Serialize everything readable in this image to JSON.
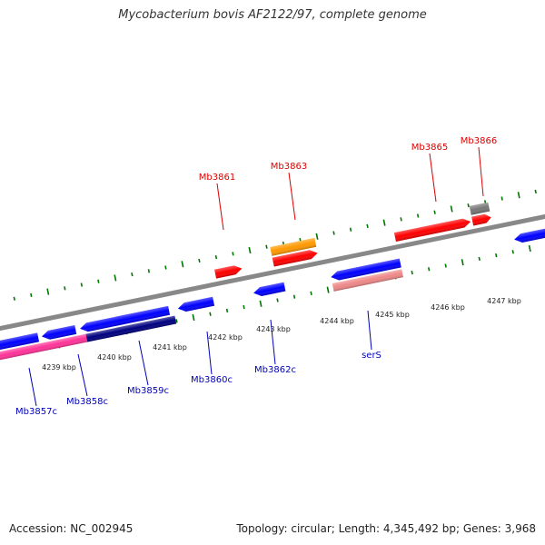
{
  "title": "Mycobacterium bovis AF2122/97, complete genome",
  "footer": {
    "accession": "Accession: NC_002945",
    "summary": "Topology: circular; Length: 4,345,492 bp; Genes: 3,968"
  },
  "colors": {
    "forward_gene": "#ff0000",
    "reverse_gene": "#0000ff",
    "rna_forward": "#ff9900",
    "pseudo_gene": "#777777",
    "reverse_pink": "#ff3399",
    "reverse_navy": "#000080",
    "trna": "#ee8888",
    "backbone": "#888888",
    "ticks": "#007700",
    "forward_label": "#dd0000",
    "reverse_label": "#0000bb"
  },
  "kbp_labels": [
    "4239 kbp",
    "4240 kbp",
    "4241 kbp",
    "4242 kbp",
    "4243 kbp",
    "4244 kbp",
    "4245 kbp",
    "4246 kbp",
    "4247 kbp"
  ],
  "forward_gene_labels": [
    "Mb3861",
    "Mb3863",
    "Mb3865",
    "Mb3866"
  ],
  "reverse_gene_labels": [
    "Mb3857c",
    "Mb3858c",
    "Mb3859c",
    "Mb3860c",
    "Mb3862c",
    "serS"
  ]
}
